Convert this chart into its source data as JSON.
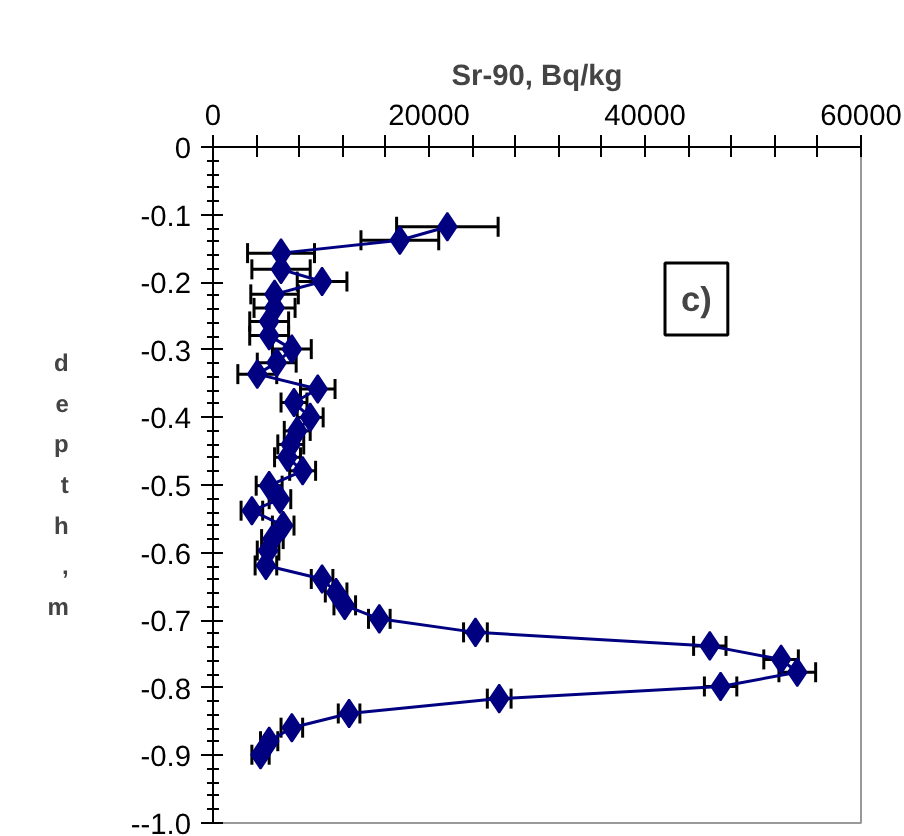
{
  "chart_data": {
    "type": "line",
    "xlabel": "Sr-90, Bq/kg",
    "ylabel": "depth, m",
    "annotations": [
      "c)"
    ],
    "x": [
      21700,
      17300,
      6300,
      6300,
      10100,
      5700,
      5700,
      5200,
      5200,
      7300,
      5900,
      4100,
      9700,
      7500,
      9000,
      7800,
      7200,
      6900,
      8300,
      5200,
      6200,
      3600,
      6500,
      5500,
      5100,
      4900,
      10100,
      11400,
      12200,
      15400,
      24300,
      46000,
      52600,
      54100,
      47000,
      26500,
      12600,
      7300,
      5200,
      4400
    ],
    "series": [
      {
        "color": "#000080",
        "values": [
          -0.118,
          -0.138,
          -0.157,
          -0.181,
          -0.199,
          -0.218,
          -0.238,
          -0.258,
          -0.279,
          -0.299,
          -0.319,
          -0.336,
          -0.358,
          -0.378,
          -0.4,
          -0.42,
          -0.44,
          -0.459,
          -0.479,
          -0.501,
          -0.521,
          -0.538,
          -0.56,
          -0.58,
          -0.597,
          -0.619,
          -0.639,
          -0.659,
          -0.678,
          -0.698,
          -0.718,
          -0.738,
          -0.758,
          -0.777,
          -0.798,
          -0.816,
          -0.838,
          -0.859,
          -0.879,
          -0.899
        ],
        "xerrors": [
          4700,
          3600,
          3100,
          2700,
          2300,
          2200,
          1900,
          1800,
          1800,
          1800,
          1800,
          1800,
          1600,
          1200,
          1200,
          1200,
          1200,
          1200,
          1200,
          1200,
          1000,
          1000,
          1000,
          1000,
          1000,
          1000,
          1000,
          1000,
          1000,
          1000,
          1100,
          1500,
          1600,
          1700,
          1500,
          1100,
          1000,
          1000,
          800,
          800
        ]
      }
    ],
    "marker": "diamond",
    "line_style": "solid",
    "grid": false,
    "xlim": [
      0,
      60000
    ],
    "ylim": [
      -1.0,
      0
    ],
    "xticks": [
      0,
      {
        "value": 4000,
        "label": null
      },
      {
        "value": 8000,
        "label": null
      },
      {
        "value": 12000,
        "label": null
      },
      {
        "value": 16000,
        "label": null
      },
      20000,
      {
        "value": 24000,
        "label": null
      },
      {
        "value": 28000,
        "label": null
      },
      {
        "value": 32000,
        "label": null
      },
      {
        "value": 36000,
        "label": null
      },
      40000,
      {
        "value": 44000,
        "label": null
      },
      {
        "value": 48000,
        "label": null
      },
      {
        "value": 52000,
        "label": null
      },
      {
        "value": 56000,
        "label": null
      },
      60000
    ],
    "yticks": [
      0,
      -0.1,
      -0.2,
      -0.3,
      -0.4,
      -0.5,
      -0.6,
      -0.7,
      -0.8,
      -0.9,
      {
        "value": -1.0,
        "label": "--1.0"
      }
    ]
  }
}
